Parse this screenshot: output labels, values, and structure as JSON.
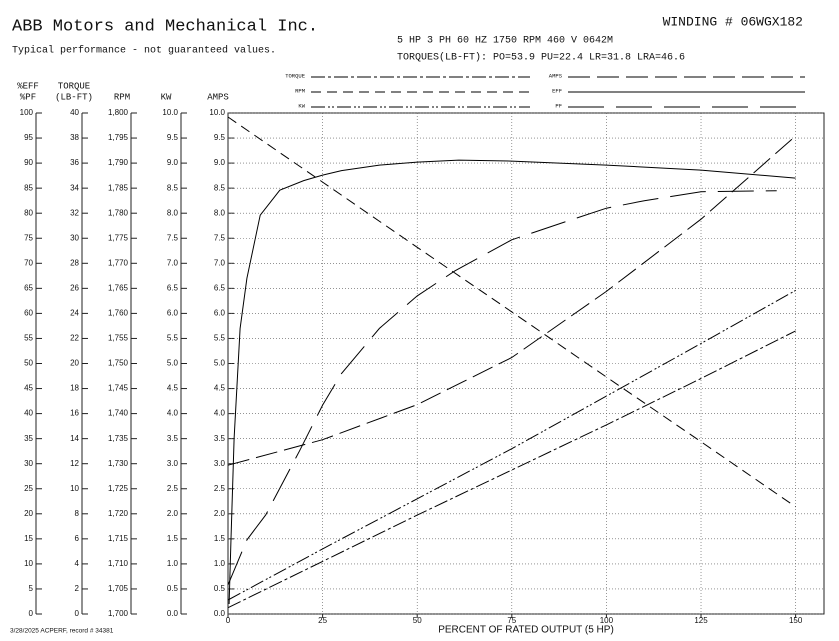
{
  "header": {
    "company": "ABB Motors and Mechanical Inc.",
    "subtitle": "Typical performance - not guaranteed values.",
    "winding": "WINDING # 06WGX182",
    "rating": "5 HP  3 PH  60 HZ  1750 RPM  460 V  0642M",
    "torques": "TORQUES(LB-FT): PO=53.9  PU=22.4  LR=31.8  LRA=46.6"
  },
  "footer": "3/28/2025 ACPERF, record # 34381",
  "chart_data": {
    "type": "line",
    "xlabel": "PERCENT OF RATED OUTPUT (5 HP)",
    "xlim": [
      0,
      157.5
    ],
    "xticks": [
      0,
      25,
      50,
      75,
      100,
      125,
      150
    ],
    "grid": true,
    "axes": [
      {
        "label": [
          "%EFF",
          "%PF"
        ],
        "ylim": [
          0,
          100
        ],
        "yticks": [
          0,
          5,
          10,
          15,
          20,
          25,
          30,
          35,
          40,
          45,
          50,
          55,
          60,
          65,
          70,
          75,
          80,
          85,
          90,
          95,
          100
        ]
      },
      {
        "label": [
          "TORQUE",
          "(LB-FT)"
        ],
        "ylim": [
          0,
          40
        ],
        "yticks": [
          0,
          2,
          4,
          6,
          8,
          10,
          12,
          14,
          16,
          18,
          20,
          22,
          24,
          26,
          28,
          30,
          32,
          34,
          36,
          38,
          40
        ]
      },
      {
        "label": [
          "RPM"
        ],
        "ylim": [
          1700,
          1800
        ],
        "yticks": [
          {
            "value": 1700,
            "label": "1,700"
          },
          {
            "value": 1705,
            "label": "1,705"
          },
          {
            "value": 1710,
            "label": "1,710"
          },
          {
            "value": 1715,
            "label": "1,715"
          },
          {
            "value": 1720,
            "label": "1,720"
          },
          {
            "value": 1725,
            "label": "1,725"
          },
          {
            "value": 1730,
            "label": "1,730"
          },
          {
            "value": 1735,
            "label": "1,735"
          },
          {
            "value": 1740,
            "label": "1,740"
          },
          {
            "value": 1745,
            "label": "1,745"
          },
          {
            "value": 1750,
            "label": "1,750"
          },
          {
            "value": 1755,
            "label": "1,755"
          },
          {
            "value": 1760,
            "label": "1,760"
          },
          {
            "value": 1765,
            "label": "1,765"
          },
          {
            "value": 1770,
            "label": "1,770"
          },
          {
            "value": 1775,
            "label": "1,775"
          },
          {
            "value": 1780,
            "label": "1,780"
          },
          {
            "value": 1785,
            "label": "1,785"
          },
          {
            "value": 1790,
            "label": "1,790"
          },
          {
            "value": 1795,
            "label": "1,795"
          },
          {
            "value": 1800,
            "label": "1,800"
          }
        ]
      },
      {
        "label": [
          "KW"
        ],
        "ylim": [
          0,
          10
        ],
        "yticks": [
          {
            "value": 0,
            "label": "0.0"
          },
          0.5,
          {
            "value": 1,
            "label": "1.0"
          },
          1.5,
          {
            "value": 2,
            "label": "2.0"
          },
          2.5,
          {
            "value": 3,
            "label": "3.0"
          },
          3.5,
          {
            "value": 4,
            "label": "4.0"
          },
          4.5,
          {
            "value": 5,
            "label": "5.0"
          },
          5.5,
          {
            "value": 6,
            "label": "6.0"
          },
          6.5,
          {
            "value": 7,
            "label": "7.0"
          },
          7.5,
          {
            "value": 8,
            "label": "8.0"
          },
          8.5,
          {
            "value": 9,
            "label": "9.0"
          },
          9.5,
          {
            "value": 10,
            "label": "10.0"
          }
        ]
      },
      {
        "label": [
          "AMPS"
        ],
        "ylim": [
          0,
          10
        ],
        "yticks": [
          {
            "value": 0,
            "label": "0.0"
          },
          0.5,
          {
            "value": 1,
            "label": "1.0"
          },
          1.5,
          {
            "value": 2,
            "label": "2.0"
          },
          2.5,
          {
            "value": 3,
            "label": "3.0"
          },
          3.5,
          {
            "value": 4,
            "label": "4.0"
          },
          4.5,
          {
            "value": 5,
            "label": "5.0"
          },
          5.5,
          {
            "value": 6,
            "label": "6.0"
          },
          6.5,
          {
            "value": 7,
            "label": "7.0"
          },
          7.5,
          {
            "value": 8,
            "label": "8.0"
          },
          8.5,
          {
            "value": 9,
            "label": "9.0"
          },
          9.5,
          {
            "value": 10,
            "label": "10.0"
          }
        ]
      }
    ],
    "series": [
      {
        "name": "TORQUE",
        "color": "#000",
        "dash": "14 3 3 3",
        "ylim": [
          0,
          40
        ],
        "x": [
          0,
          25,
          50,
          75,
          100,
          125,
          150
        ],
        "values": [
          0.5,
          4.2,
          7.9,
          11.5,
          15.1,
          18.8,
          22.6
        ]
      },
      {
        "name": "RPM",
        "color": "#000",
        "dash": "10 6",
        "ylim": [
          1700,
          1800
        ],
        "x": [
          0,
          25,
          50,
          75,
          100,
          125,
          150
        ],
        "values": [
          1799.2,
          1786.2,
          1773.2,
          1760.3,
          1747.3,
          1734.4,
          1721.4
        ]
      },
      {
        "name": "KW",
        "color": "#000",
        "dash": "14 3 2 2 2 3",
        "ylim": [
          0,
          10
        ],
        "x": [
          0,
          25,
          50,
          75,
          100,
          125,
          150
        ],
        "values": [
          0.28,
          1.3,
          2.3,
          3.3,
          4.35,
          5.4,
          6.46
        ]
      },
      {
        "name": "AMPS",
        "color": "#000",
        "dash": "22 7",
        "ylim": [
          0,
          10
        ],
        "x": [
          0,
          25,
          50,
          75,
          100,
          125,
          150
        ],
        "values": [
          2.97,
          3.48,
          4.18,
          5.12,
          6.44,
          7.88,
          9.54
        ]
      },
      {
        "name": "EFF",
        "color": "#000",
        "ylim": [
          0,
          100
        ],
        "x": [
          0.3,
          0.8,
          1.6,
          3.2,
          5,
          8.5,
          13.7,
          20,
          25,
          30,
          40,
          50,
          61,
          75,
          100,
          125,
          150
        ],
        "values": [
          2,
          15,
          35,
          57,
          67,
          79.6,
          84.6,
          86.5,
          87.6,
          88.5,
          89.6,
          90.2,
          90.6,
          90.4,
          89.6,
          88.6,
          87
        ]
      },
      {
        "name": "PF",
        "color": "#000",
        "dash": "36 12",
        "ylim": [
          0,
          100
        ],
        "x": [
          0,
          5,
          10,
          19,
          25,
          30,
          40,
          50,
          60,
          75,
          90,
          100,
          110,
          125,
          145
        ],
        "values": [
          5.8,
          14.8,
          19.8,
          32.7,
          41.7,
          48,
          57,
          63.5,
          68.5,
          74.7,
          78.5,
          81,
          82.5,
          84.3,
          84.5
        ]
      }
    ]
  }
}
